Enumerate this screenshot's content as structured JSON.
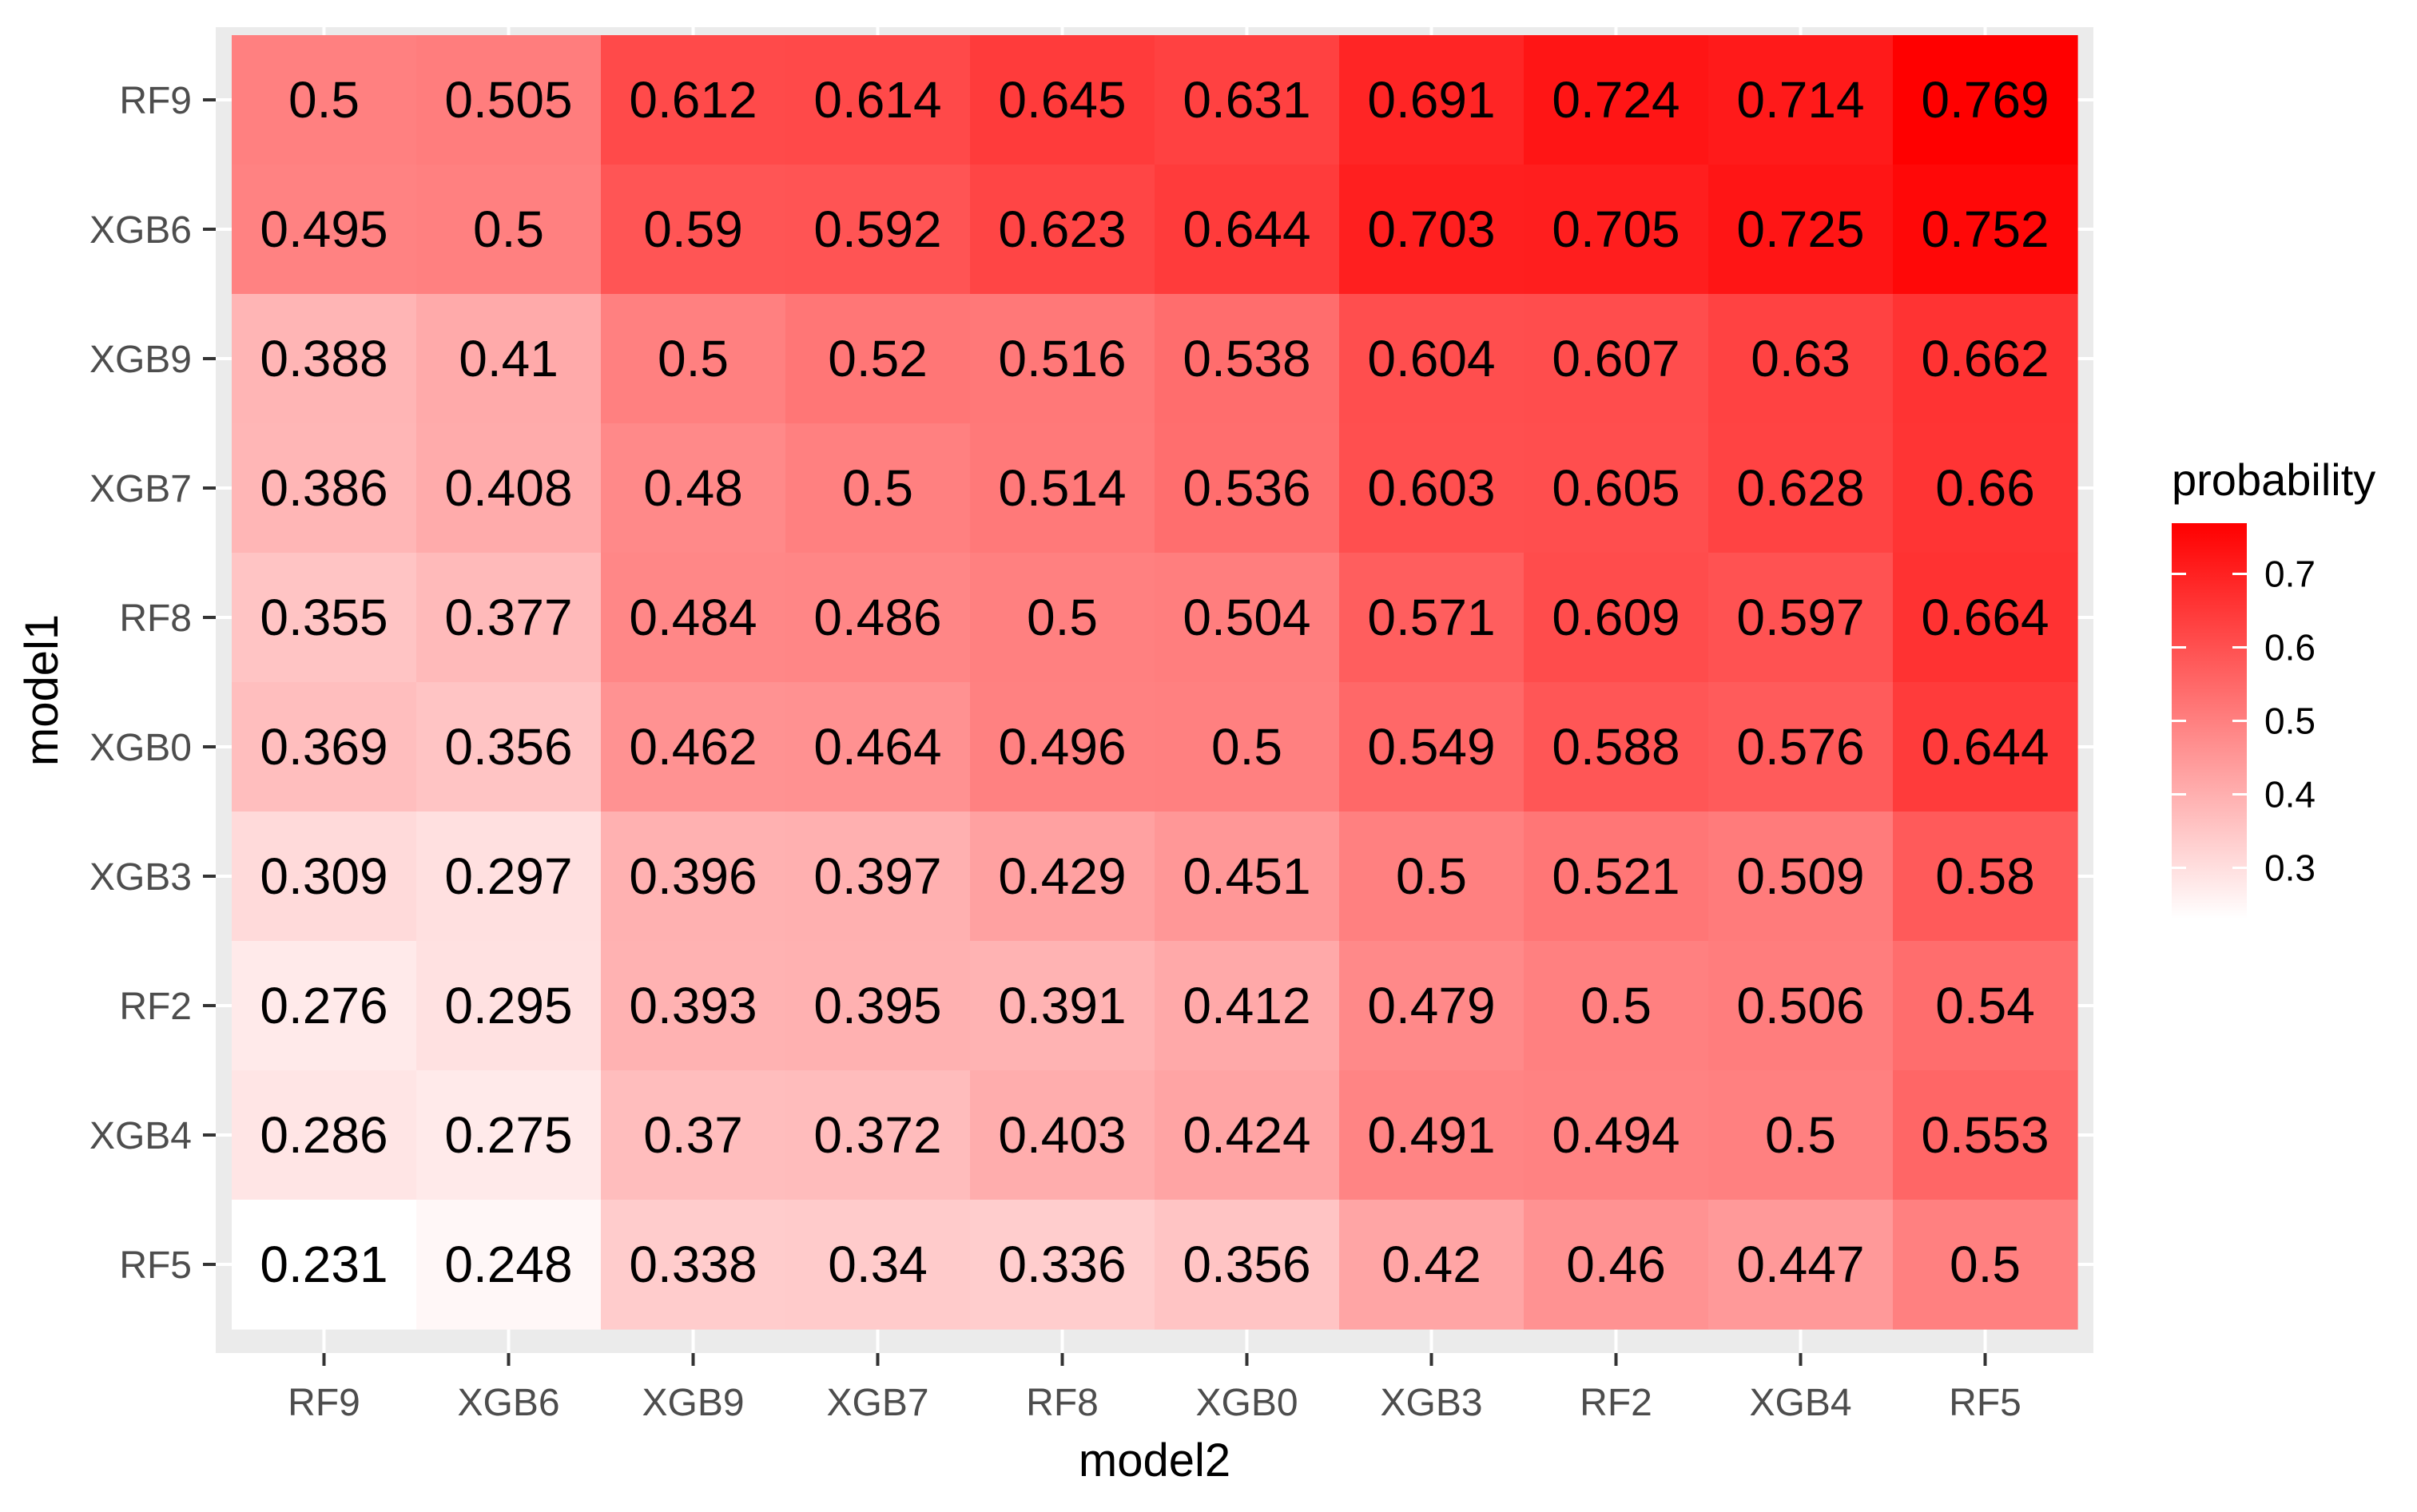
{
  "chart_data": {
    "type": "heatmap",
    "title": "",
    "xlabel": "model2",
    "ylabel": "model1",
    "x_categories": [
      "RF9",
      "XGB6",
      "XGB9",
      "XGB7",
      "RF8",
      "XGB0",
      "XGB3",
      "RF2",
      "XGB4",
      "RF5"
    ],
    "y_categories": [
      "RF9",
      "XGB6",
      "XGB9",
      "XGB7",
      "RF8",
      "XGB0",
      "XGB3",
      "RF2",
      "XGB4",
      "RF5"
    ],
    "values": [
      [
        0.5,
        0.505,
        0.612,
        0.614,
        0.645,
        0.631,
        0.691,
        0.724,
        0.714,
        0.769
      ],
      [
        0.495,
        0.5,
        0.59,
        0.592,
        0.623,
        0.644,
        0.703,
        0.705,
        0.725,
        0.752
      ],
      [
        0.388,
        0.41,
        0.5,
        0.52,
        0.516,
        0.538,
        0.604,
        0.607,
        0.63,
        0.662
      ],
      [
        0.386,
        0.408,
        0.48,
        0.5,
        0.514,
        0.536,
        0.603,
        0.605,
        0.628,
        0.66
      ],
      [
        0.355,
        0.377,
        0.484,
        0.486,
        0.5,
        0.504,
        0.571,
        0.609,
        0.597,
        0.664
      ],
      [
        0.369,
        0.356,
        0.462,
        0.464,
        0.496,
        0.5,
        0.549,
        0.588,
        0.576,
        0.644
      ],
      [
        0.309,
        0.297,
        0.396,
        0.397,
        0.429,
        0.451,
        0.5,
        0.521,
        0.509,
        0.58
      ],
      [
        0.276,
        0.295,
        0.393,
        0.395,
        0.391,
        0.412,
        0.479,
        0.5,
        0.506,
        0.54
      ],
      [
        0.286,
        0.275,
        0.37,
        0.372,
        0.403,
        0.424,
        0.491,
        0.494,
        0.5,
        0.553
      ],
      [
        0.231,
        0.248,
        0.338,
        0.34,
        0.336,
        0.356,
        0.42,
        0.46,
        0.447,
        0.5
      ]
    ],
    "value_labels": [
      [
        "0.5",
        "0.505",
        "0.612",
        "0.614",
        "0.645",
        "0.631",
        "0.691",
        "0.724",
        "0.714",
        "0.769"
      ],
      [
        "0.495",
        "0.5",
        "0.59",
        "0.592",
        "0.623",
        "0.644",
        "0.703",
        "0.705",
        "0.725",
        "0.752"
      ],
      [
        "0.388",
        "0.41",
        "0.5",
        "0.52",
        "0.516",
        "0.538",
        "0.604",
        "0.607",
        "0.63",
        "0.662"
      ],
      [
        "0.386",
        "0.408",
        "0.48",
        "0.5",
        "0.514",
        "0.536",
        "0.603",
        "0.605",
        "0.628",
        "0.66"
      ],
      [
        "0.355",
        "0.377",
        "0.484",
        "0.486",
        "0.5",
        "0.504",
        "0.571",
        "0.609",
        "0.597",
        "0.664"
      ],
      [
        "0.369",
        "0.356",
        "0.462",
        "0.464",
        "0.496",
        "0.5",
        "0.549",
        "0.588",
        "0.576",
        "0.644"
      ],
      [
        "0.309",
        "0.297",
        "0.396",
        "0.397",
        "0.429",
        "0.451",
        "0.5",
        "0.521",
        "0.509",
        "0.58"
      ],
      [
        "0.276",
        "0.295",
        "0.393",
        "0.395",
        "0.391",
        "0.412",
        "0.479",
        "0.5",
        "0.506",
        "0.54"
      ],
      [
        "0.286",
        "0.275",
        "0.37",
        "0.372",
        "0.403",
        "0.424",
        "0.491",
        "0.494",
        "0.5",
        "0.553"
      ],
      [
        "0.231",
        "0.248",
        "0.338",
        "0.34",
        "0.336",
        "0.356",
        "0.42",
        "0.46",
        "0.447",
        "0.5"
      ]
    ],
    "legend": {
      "title": "probability",
      "placement": "right",
      "ticks": [
        0.3,
        0.4,
        0.5,
        0.6,
        0.7
      ],
      "tick_labels": [
        "0.3",
        "0.4",
        "0.5",
        "0.6",
        "0.7"
      ]
    },
    "color_scale": {
      "low_color": "#ffffff",
      "high_color": "#ff0000",
      "domain": [
        0.231,
        0.769
      ]
    },
    "panel_background": "#ebebeb",
    "grid": true
  }
}
